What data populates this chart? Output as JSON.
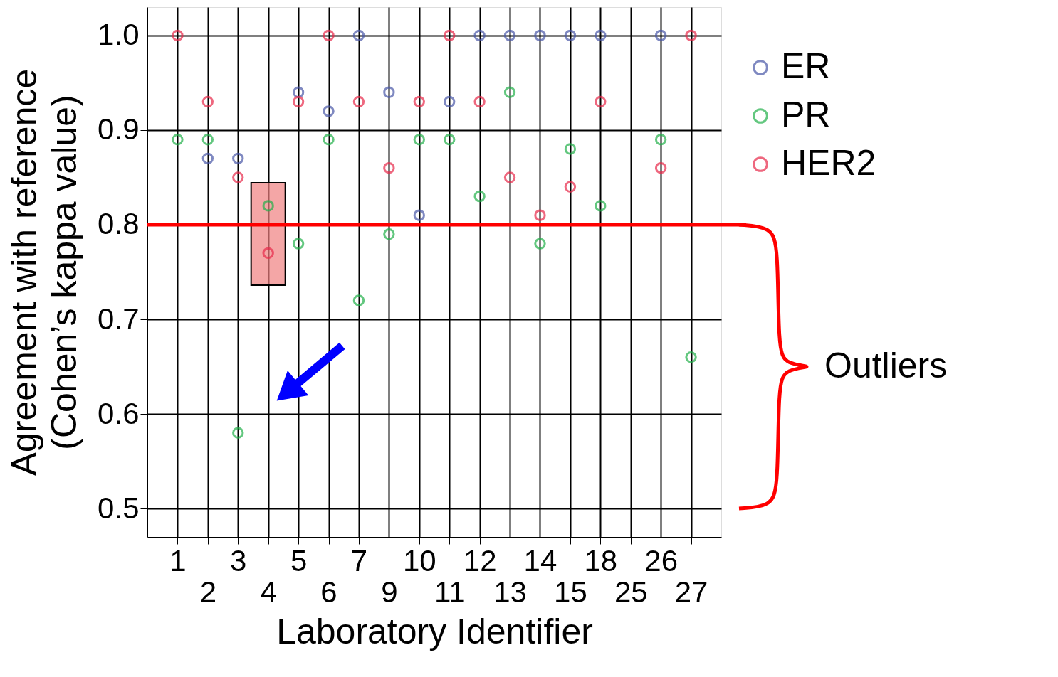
{
  "chart_data": {
    "type": "scatter",
    "xlabel": "Laboratory Identifier",
    "ylabel": "Agreement with reference\n(Cohen’s kappa value)",
    "categories": [
      "1",
      "2",
      "3",
      "4",
      "5",
      "6",
      "7",
      "9",
      "10",
      "11",
      "12",
      "13",
      "14",
      "15",
      "18",
      "25",
      "26",
      "27"
    ],
    "series": [
      {
        "name": "ER",
        "color": "#4a58a8",
        "values": [
          null,
          0.87,
          0.87,
          null,
          0.94,
          0.92,
          1.0,
          0.94,
          0.81,
          0.93,
          1.0,
          1.0,
          1.0,
          1.0,
          1.0,
          null,
          1.0,
          null
        ]
      },
      {
        "name": "PR",
        "color": "#22b04a",
        "values": [
          0.89,
          0.89,
          0.58,
          0.82,
          0.78,
          0.89,
          0.72,
          0.79,
          0.89,
          0.89,
          0.83,
          0.94,
          0.78,
          0.88,
          0.82,
          null,
          0.89,
          0.66
        ]
      },
      {
        "name": "HER2",
        "color": "#e8294a",
        "values": [
          1.0,
          0.93,
          0.85,
          0.77,
          0.93,
          1.0,
          0.93,
          0.86,
          0.93,
          1.0,
          0.93,
          0.85,
          0.81,
          0.84,
          0.93,
          null,
          0.86,
          1.0
        ]
      }
    ],
    "ylim": [
      0.47,
      1.03
    ],
    "yticks": [
      0.5,
      0.6,
      0.7,
      0.8,
      0.9,
      {
        "value": 1,
        "label": "1.0"
      }
    ],
    "grid": true,
    "legend": "right",
    "marker": "circle",
    "ref_lines": [
      {
        "axis": "y",
        "value": 0.8,
        "color": "#ff0000"
      }
    ],
    "annotations": [
      "Outliers"
    ]
  }
}
